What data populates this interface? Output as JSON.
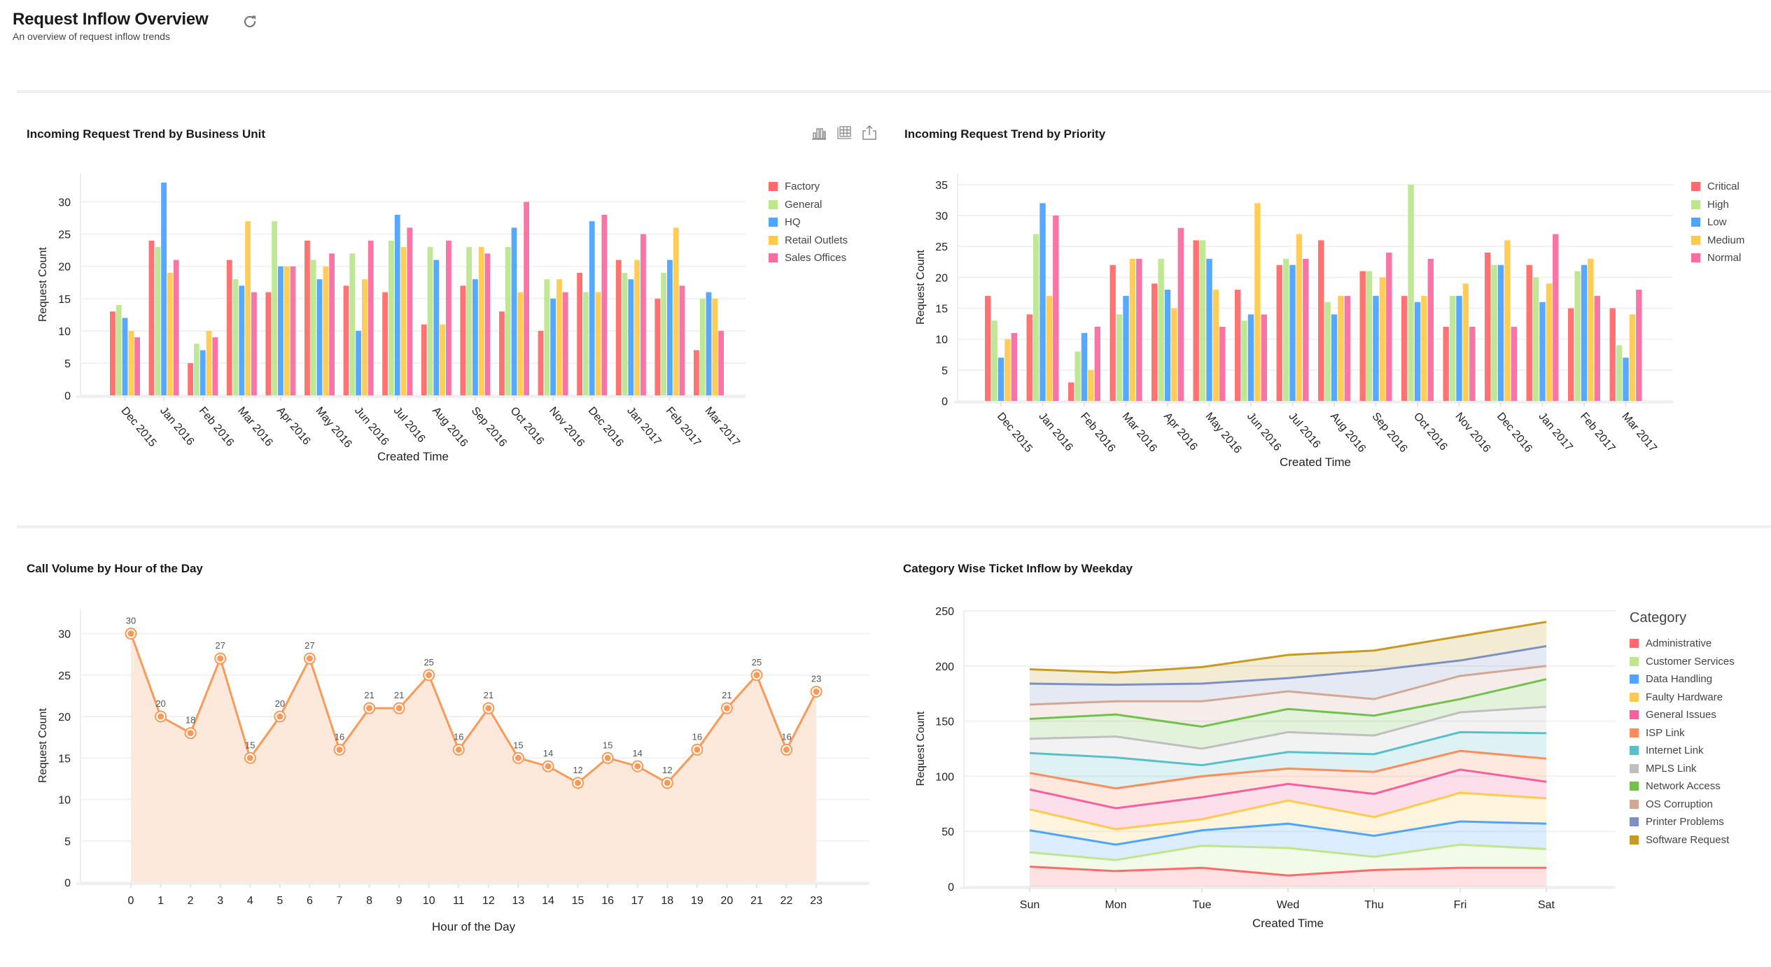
{
  "header": {
    "title": "Request Inflow Overview",
    "subtitle": "An overview of request inflow trends",
    "refresh_icon": "refresh-icon"
  },
  "panels": {
    "business_unit": {
      "title": "Incoming Request Trend by Business Unit",
      "toolbar": [
        {
          "icon": "bar-chart-icon",
          "label": "Chart view"
        },
        {
          "icon": "table-icon",
          "label": "Table view"
        },
        {
          "icon": "export-icon",
          "label": "Export"
        }
      ]
    },
    "priority": {
      "title": "Incoming Request Trend by Priority"
    },
    "hourly": {
      "title": "Call Volume by Hour of the Day"
    },
    "weekday": {
      "title": "Category Wise Ticket Inflow by Weekday"
    }
  },
  "chart_data": [
    {
      "id": "business_unit",
      "type": "bar",
      "title": "Incoming Request Trend by Business Unit",
      "xlabel": "Created Time",
      "ylabel": "Request Count",
      "ylim": [
        0,
        34.4
      ],
      "yticks": [
        0,
        5,
        10,
        15,
        20,
        25,
        30
      ],
      "grid": true,
      "legend": "right",
      "categories": [
        "Dec 2015",
        "Jan 2016",
        "Feb 2016",
        "Mar 2016",
        "Apr 2016",
        "May 2016",
        "Jun 2016",
        "Jul 2016",
        "Aug 2016",
        "Sep 2016",
        "Oct 2016",
        "Nov 2016",
        "Dec 2016",
        "Jan 2017",
        "Feb 2017",
        "Mar 2017"
      ],
      "series": [
        {
          "name": "Factory",
          "color": "#ff6b6b",
          "values": [
            13,
            24,
            5,
            21,
            16,
            24,
            17,
            16,
            11,
            17,
            13,
            10,
            19,
            21,
            15,
            7
          ]
        },
        {
          "name": "General",
          "color": "#bde68f",
          "values": [
            14,
            23,
            8,
            18,
            27,
            21,
            22,
            24,
            23,
            23,
            23,
            18,
            16,
            19,
            19,
            15
          ]
        },
        {
          "name": "HQ",
          "color": "#4ea4ff",
          "values": [
            12,
            33,
            7,
            17,
            20,
            18,
            10,
            28,
            21,
            18,
            26,
            15,
            27,
            18,
            21,
            16
          ]
        },
        {
          "name": "Retail Outlets",
          "color": "#ffca4f",
          "values": [
            10,
            19,
            10,
            27,
            20,
            20,
            18,
            23,
            11,
            23,
            16,
            18,
            16,
            21,
            26,
            15
          ]
        },
        {
          "name": "Sales Offices",
          "color": "#f76fa0",
          "values": [
            9,
            21,
            9,
            16,
            20,
            22,
            24,
            26,
            24,
            22,
            30,
            16,
            28,
            25,
            17,
            10
          ]
        }
      ]
    },
    {
      "id": "priority",
      "type": "bar",
      "title": "Incoming Request Trend by Priority",
      "xlabel": "Created Time",
      "ylabel": "Request Count",
      "ylim": [
        0,
        36.8
      ],
      "yticks": [
        0,
        5,
        10,
        15,
        20,
        25,
        30,
        35
      ],
      "grid": true,
      "legend": "right",
      "categories": [
        "Dec 2015",
        "Jan 2016",
        "Feb 2016",
        "Mar 2016",
        "Apr 2016",
        "May 2016",
        "Jun 2016",
        "Jul 2016",
        "Aug 2016",
        "Sep 2016",
        "Oct 2016",
        "Nov 2016",
        "Dec 2016",
        "Jan 2017",
        "Feb 2017",
        "Mar 2017"
      ],
      "series": [
        {
          "name": "Critical",
          "color": "#ff6b6b",
          "values": [
            17,
            14,
            3,
            22,
            19,
            26,
            18,
            22,
            26,
            21,
            17,
            12,
            24,
            22,
            15,
            15
          ]
        },
        {
          "name": "High",
          "color": "#bde68f",
          "values": [
            13,
            27,
            8,
            14,
            23,
            26,
            13,
            23,
            16,
            21,
            35,
            17,
            22,
            20,
            21,
            9
          ]
        },
        {
          "name": "Low",
          "color": "#4ea4ff",
          "values": [
            7,
            32,
            11,
            17,
            18,
            23,
            14,
            22,
            14,
            17,
            16,
            17,
            22,
            16,
            22,
            7
          ]
        },
        {
          "name": "Medium",
          "color": "#ffca4f",
          "values": [
            10,
            17,
            5,
            23,
            15,
            18,
            32,
            27,
            17,
            20,
            17,
            19,
            26,
            19,
            23,
            14
          ]
        },
        {
          "name": "Normal",
          "color": "#f76fa0",
          "values": [
            11,
            30,
            12,
            23,
            28,
            12,
            14,
            23,
            17,
            24,
            23,
            12,
            12,
            27,
            17,
            18
          ]
        }
      ]
    },
    {
      "id": "hourly",
      "type": "area",
      "title": "Call Volume by Hour of the Day",
      "xlabel": "Hour of the Day",
      "ylabel": "Request Count",
      "ylim": [
        0,
        33
      ],
      "yticks": [
        0,
        5,
        10,
        15,
        20,
        25,
        30
      ],
      "grid": true,
      "legend": "none",
      "data_labels": true,
      "color": "#f79a5a",
      "fill": "#fde9dc",
      "x": [
        "0",
        "1",
        "2",
        "3",
        "4",
        "5",
        "6",
        "7",
        "8",
        "9",
        "10",
        "11",
        "12",
        "13",
        "14",
        "15",
        "16",
        "17",
        "18",
        "19",
        "20",
        "21",
        "22",
        "23"
      ],
      "values": [
        30,
        20,
        18,
        27,
        15,
        20,
        27,
        16,
        21,
        21,
        25,
        16,
        21,
        15,
        14,
        12,
        15,
        14,
        12,
        16,
        21,
        25,
        16,
        23
      ]
    },
    {
      "id": "weekday",
      "type": "area",
      "stacked": true,
      "title": "Category Wise Ticket Inflow by Weekday",
      "xlabel": "Created Time",
      "ylabel": "Request Count",
      "ylim": [
        0,
        250
      ],
      "yticks": [
        0,
        50,
        100,
        150,
        200,
        250
      ],
      "grid": true,
      "legend": "right",
      "legend_title": "Category",
      "categories": [
        "Sun",
        "Mon",
        "Tue",
        "Wed",
        "Thu",
        "Fri",
        "Sat"
      ],
      "series": [
        {
          "name": "Administrative",
          "color": "#ff6b6b",
          "values": [
            18,
            14,
            17,
            10,
            15,
            17,
            17
          ]
        },
        {
          "name": "Customer Services",
          "color": "#bde68f",
          "values": [
            13,
            10,
            20,
            25,
            12,
            21,
            17
          ]
        },
        {
          "name": "Data Handling",
          "color": "#4ea4ff",
          "values": [
            20,
            14,
            14,
            22,
            19,
            21,
            23
          ]
        },
        {
          "name": "Faulty Hardware",
          "color": "#ffca4f",
          "values": [
            19,
            14,
            10,
            21,
            17,
            26,
            23
          ]
        },
        {
          "name": "General Issues",
          "color": "#f7609e",
          "values": [
            18,
            19,
            20,
            15,
            21,
            21,
            15
          ]
        },
        {
          "name": "ISP Link",
          "color": "#ff8c5a",
          "values": [
            15,
            18,
            19,
            14,
            20,
            17,
            21
          ]
        },
        {
          "name": "Internet Link",
          "color": "#5bbfc9",
          "values": [
            18,
            28,
            10,
            15,
            16,
            17,
            23
          ]
        },
        {
          "name": "MPLS Link",
          "color": "#bfbfbf",
          "values": [
            13,
            19,
            15,
            18,
            17,
            18,
            24
          ]
        },
        {
          "name": "Network Access",
          "color": "#72c04d",
          "values": [
            18,
            20,
            20,
            21,
            18,
            12,
            25
          ]
        },
        {
          "name": "OS Corruption",
          "color": "#d2a794",
          "values": [
            13,
            12,
            23,
            16,
            15,
            21,
            12
          ]
        },
        {
          "name": "Printer Problems",
          "color": "#7c90c1",
          "values": [
            19,
            15,
            16,
            12,
            26,
            14,
            18
          ]
        },
        {
          "name": "Software Request",
          "color": "#c79a22",
          "values": [
            13,
            11,
            15,
            21,
            18,
            22,
            22
          ]
        }
      ]
    }
  ]
}
